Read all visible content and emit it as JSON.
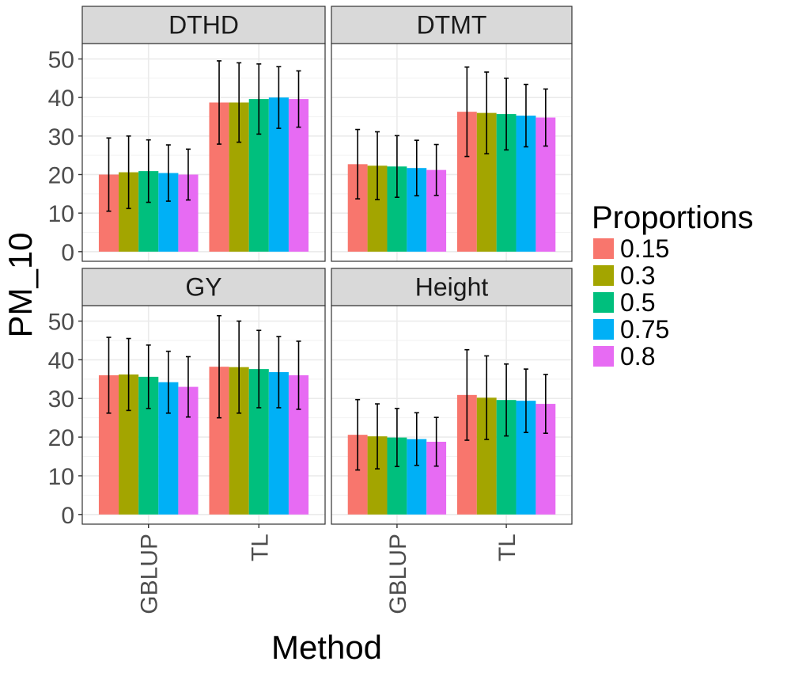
{
  "chart_data": {
    "type": "bar",
    "facets": [
      "DTHD",
      "DTMT",
      "GY",
      "Height"
    ],
    "categories": [
      "GBLUP",
      "TL"
    ],
    "xlabel": "Method",
    "ylabel": "PM_10",
    "ylim": [
      -2.5,
      54
    ],
    "yticks": [
      0,
      10,
      20,
      30,
      40,
      50
    ],
    "grid": true,
    "legend": {
      "title": "Proportions",
      "position": "right",
      "entries": [
        "0.15",
        "0.3",
        "0.5",
        "0.75",
        "0.8"
      ],
      "colors": [
        "#F8766D",
        "#A3A500",
        "#00BF7D",
        "#00B0F6",
        "#E76BF3"
      ]
    },
    "panels": [
      {
        "facet": "DTHD",
        "series": [
          {
            "name": "0.15",
            "values": [
              20.0,
              38.7
            ],
            "errors": [
              9.5,
              10.8
            ]
          },
          {
            "name": "0.3",
            "values": [
              20.6,
              38.7
            ],
            "errors": [
              9.4,
              10.3
            ]
          },
          {
            "name": "0.5",
            "values": [
              20.9,
              39.6
            ],
            "errors": [
              8.1,
              9.1
            ]
          },
          {
            "name": "0.75",
            "values": [
              20.4,
              40.0
            ],
            "errors": [
              7.3,
              8.0
            ]
          },
          {
            "name": "0.8",
            "values": [
              20.0,
              39.6
            ],
            "errors": [
              6.6,
              7.3
            ]
          }
        ]
      },
      {
        "facet": "DTMT",
        "series": [
          {
            "name": "0.15",
            "values": [
              22.7,
              36.3
            ],
            "errors": [
              9.0,
              11.6
            ]
          },
          {
            "name": "0.3",
            "values": [
              22.3,
              36.0
            ],
            "errors": [
              8.8,
              10.6
            ]
          },
          {
            "name": "0.5",
            "values": [
              22.1,
              35.7
            ],
            "errors": [
              8.0,
              9.3
            ]
          },
          {
            "name": "0.75",
            "values": [
              21.7,
              35.3
            ],
            "errors": [
              7.2,
              8.1
            ]
          },
          {
            "name": "0.8",
            "values": [
              21.2,
              34.8
            ],
            "errors": [
              6.6,
              7.4
            ]
          }
        ]
      },
      {
        "facet": "GY",
        "series": [
          {
            "name": "0.15",
            "values": [
              36.0,
              38.2
            ],
            "errors": [
              9.8,
              13.2
            ]
          },
          {
            "name": "0.3",
            "values": [
              36.2,
              38.1
            ],
            "errors": [
              9.3,
              11.9
            ]
          },
          {
            "name": "0.5",
            "values": [
              35.6,
              37.6
            ],
            "errors": [
              8.2,
              10.0
            ]
          },
          {
            "name": "0.75",
            "values": [
              34.2,
              36.8
            ],
            "errors": [
              8.0,
              9.2
            ]
          },
          {
            "name": "0.8",
            "values": [
              33.0,
              36.0
            ],
            "errors": [
              7.8,
              8.8
            ]
          }
        ]
      },
      {
        "facet": "Height",
        "series": [
          {
            "name": "0.15",
            "values": [
              20.6,
              30.9
            ],
            "errors": [
              9.1,
              11.7
            ]
          },
          {
            "name": "0.3",
            "values": [
              20.2,
              30.2
            ],
            "errors": [
              8.4,
              10.8
            ]
          },
          {
            "name": "0.5",
            "values": [
              19.9,
              29.6
            ],
            "errors": [
              7.5,
              9.3
            ]
          },
          {
            "name": "0.75",
            "values": [
              19.5,
              29.4
            ],
            "errors": [
              6.8,
              8.2
            ]
          },
          {
            "name": "0.8",
            "values": [
              18.8,
              28.6
            ],
            "errors": [
              6.3,
              7.6
            ]
          }
        ]
      }
    ]
  }
}
